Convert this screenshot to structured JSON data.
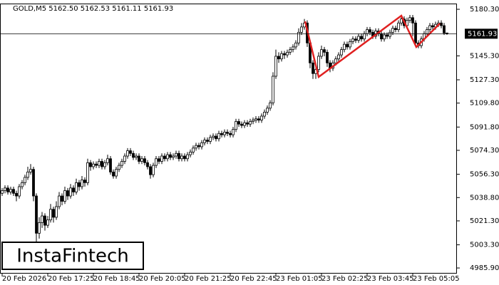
{
  "header": "GOLD,M5  5162.50 5162.53 5161.11 5161.93",
  "logo": "InstaFintech",
  "chart_data": {
    "type": "candlestick",
    "ylim": [
      4982.2,
      5184.6
    ],
    "yticks": [
      {
        "value": 5180.3,
        "label": "5180.30"
      },
      {
        "value": 5145.3,
        "label": "5145.30"
      },
      {
        "value": 5127.3,
        "label": "5127.30"
      },
      {
        "value": 5109.8,
        "label": "5109.80"
      },
      {
        "value": 5091.8,
        "label": "5091.80"
      },
      {
        "value": 5074.3,
        "label": "5074.30"
      },
      {
        "value": 5056.3,
        "label": "5056.30"
      },
      {
        "value": 5038.8,
        "label": "5038.80"
      },
      {
        "value": 5021.3,
        "label": "5021.30"
      },
      {
        "value": 5003.3,
        "label": "5003.30"
      },
      {
        "value": 4985.9,
        "label": "4985.90"
      }
    ],
    "current_price": {
      "value": 5161.93,
      "label": "5161.93"
    },
    "pattern_color": "#e02020",
    "categories": [
      "20 Feb 2026",
      null,
      null,
      null,
      null,
      null,
      null,
      null,
      null,
      null,
      null,
      null,
      null,
      null,
      null,
      null,
      "20 Feb 17:25",
      null,
      null,
      null,
      null,
      null,
      null,
      null,
      null,
      null,
      null,
      null,
      null,
      null,
      null,
      null,
      "20 Feb 18:45",
      null,
      null,
      null,
      null,
      null,
      null,
      null,
      null,
      null,
      null,
      null,
      null,
      null,
      null,
      null,
      "20 Feb 20:05",
      null,
      null,
      null,
      null,
      null,
      null,
      null,
      null,
      null,
      null,
      null,
      null,
      null,
      null,
      null,
      "20 Feb 21:25",
      null,
      null,
      null,
      null,
      null,
      null,
      null,
      null,
      null,
      null,
      null,
      null,
      null,
      null,
      null,
      "20 Feb 22:45",
      null,
      null,
      null,
      null,
      null,
      null,
      null,
      null,
      null,
      null,
      null,
      null,
      null,
      null,
      null,
      "23 Feb 01:05",
      null,
      null,
      null,
      null,
      null,
      null,
      null,
      null,
      null,
      null,
      null,
      null,
      null,
      null,
      null,
      "23 Feb 02:25",
      null,
      null,
      null,
      null,
      null,
      null,
      null,
      null,
      null,
      null,
      null,
      null,
      null,
      null,
      null,
      "23 Feb 03:45",
      null,
      null,
      null,
      null,
      null,
      null,
      null,
      null,
      null,
      null,
      null,
      null,
      null,
      null,
      null,
      "23 Feb 05:05",
      null,
      null,
      null,
      null,
      null,
      null,
      null,
      null,
      null,
      null,
      null,
      null
    ],
    "candles": [
      [
        5042,
        5046,
        5040,
        5044
      ],
      [
        5044,
        5048,
        5042,
        5046
      ],
      [
        5046,
        5048,
        5041,
        5043
      ],
      [
        5043,
        5047,
        5041,
        5045
      ],
      [
        5045,
        5047,
        5040,
        5042
      ],
      [
        5042,
        5044,
        5036,
        5040
      ],
      [
        5040,
        5049,
        5038,
        5047
      ],
      [
        5047,
        5052,
        5045,
        5050
      ],
      [
        5050,
        5056,
        5048,
        5054
      ],
      [
        5054,
        5062,
        5052,
        5058
      ],
      [
        5058,
        5064,
        5056,
        5060
      ],
      [
        5060,
        5062,
        5036,
        5040
      ],
      [
        5040,
        5042,
        5003,
        5012
      ],
      [
        5012,
        5024,
        5008,
        5020
      ],
      [
        5020,
        5028,
        5016,
        5025
      ],
      [
        5025,
        5027,
        5014,
        5018
      ],
      [
        5018,
        5025,
        5016,
        5022
      ],
      [
        5022,
        5034,
        5020,
        5030
      ],
      [
        5030,
        5032,
        5020,
        5024
      ],
      [
        5024,
        5036,
        5022,
        5032
      ],
      [
        5032,
        5043,
        5030,
        5040
      ],
      [
        5040,
        5042,
        5033,
        5036
      ],
      [
        5036,
        5047,
        5034,
        5044
      ],
      [
        5044,
        5046,
        5037,
        5040
      ],
      [
        5040,
        5049,
        5038,
        5046
      ],
      [
        5046,
        5048,
        5040,
        5043
      ],
      [
        5043,
        5053,
        5041,
        5050
      ],
      [
        5050,
        5052,
        5044,
        5047
      ],
      [
        5047,
        5055,
        5045,
        5052
      ],
      [
        5052,
        5054,
        5047,
        5050
      ],
      [
        5050,
        5068,
        5048,
        5065
      ],
      [
        5065,
        5067,
        5059,
        5062
      ],
      [
        5062,
        5066,
        5060,
        5064
      ],
      [
        5064,
        5066,
        5061,
        5063
      ],
      [
        5063,
        5068,
        5061,
        5066
      ],
      [
        5066,
        5068,
        5060,
        5062
      ],
      [
        5062,
        5067,
        5060,
        5065
      ],
      [
        5065,
        5071,
        5063,
        5068
      ],
      [
        5068,
        5070,
        5056,
        5058
      ],
      [
        5058,
        5060,
        5053,
        5055
      ],
      [
        5055,
        5062,
        5053,
        5060
      ],
      [
        5060,
        5065,
        5058,
        5063
      ],
      [
        5063,
        5068,
        5061,
        5066
      ],
      [
        5066,
        5072,
        5064,
        5070
      ],
      [
        5070,
        5076,
        5068,
        5074
      ],
      [
        5074,
        5076,
        5070,
        5072
      ],
      [
        5072,
        5074,
        5067,
        5069
      ],
      [
        5069,
        5072,
        5067,
        5070
      ],
      [
        5070,
        5072,
        5064,
        5066
      ],
      [
        5066,
        5070,
        5064,
        5068
      ],
      [
        5068,
        5070,
        5063,
        5065
      ],
      [
        5065,
        5067,
        5060,
        5062
      ],
      [
        5062,
        5064,
        5053,
        5056
      ],
      [
        5056,
        5065,
        5054,
        5063
      ],
      [
        5063,
        5070,
        5061,
        5068
      ],
      [
        5068,
        5070,
        5064,
        5066
      ],
      [
        5066,
        5072,
        5064,
        5070
      ],
      [
        5070,
        5072,
        5066,
        5068
      ],
      [
        5068,
        5073,
        5066,
        5071
      ],
      [
        5071,
        5073,
        5067,
        5069
      ],
      [
        5069,
        5072,
        5067,
        5070
      ],
      [
        5070,
        5074,
        5068,
        5072
      ],
      [
        5072,
        5074,
        5066,
        5068
      ],
      [
        5068,
        5072,
        5066,
        5070
      ],
      [
        5070,
        5072,
        5066,
        5068
      ],
      [
        5068,
        5073,
        5066,
        5071
      ],
      [
        5071,
        5075,
        5069,
        5073
      ],
      [
        5073,
        5078,
        5071,
        5076
      ],
      [
        5076,
        5080,
        5074,
        5078
      ],
      [
        5078,
        5080,
        5075,
        5077
      ],
      [
        5077,
        5082,
        5075,
        5080
      ],
      [
        5080,
        5084,
        5078,
        5082
      ],
      [
        5082,
        5084,
        5079,
        5081
      ],
      [
        5081,
        5086,
        5079,
        5084
      ],
      [
        5084,
        5087,
        5082,
        5085
      ],
      [
        5085,
        5087,
        5081,
        5083
      ],
      [
        5083,
        5089,
        5081,
        5087
      ],
      [
        5087,
        5089,
        5084,
        5086
      ],
      [
        5086,
        5090,
        5084,
        5088
      ],
      [
        5088,
        5090,
        5085,
        5087
      ],
      [
        5087,
        5089,
        5084,
        5086
      ],
      [
        5086,
        5092,
        5084,
        5090
      ],
      [
        5090,
        5098,
        5088,
        5096
      ],
      [
        5096,
        5098,
        5092,
        5094
      ],
      [
        5094,
        5096,
        5091,
        5093
      ],
      [
        5093,
        5097,
        5091,
        5095
      ],
      [
        5095,
        5097,
        5092,
        5094
      ],
      [
        5094,
        5098,
        5092,
        5096
      ],
      [
        5096,
        5099,
        5094,
        5097
      ],
      [
        5097,
        5100,
        5095,
        5098
      ],
      [
        5098,
        5100,
        5095,
        5097
      ],
      [
        5097,
        5102,
        5095,
        5100
      ],
      [
        5100,
        5105,
        5098,
        5103
      ],
      [
        5103,
        5108,
        5101,
        5106
      ],
      [
        5106,
        5112,
        5104,
        5110
      ],
      [
        5110,
        5133,
        5108,
        5130
      ],
      [
        5130,
        5150,
        5128,
        5145
      ],
      [
        5145,
        5148,
        5140,
        5143
      ],
      [
        5143,
        5149,
        5141,
        5147
      ],
      [
        5147,
        5149,
        5143,
        5146
      ],
      [
        5146,
        5150,
        5144,
        5148
      ],
      [
        5148,
        5152,
        5146,
        5150
      ],
      [
        5150,
        5154,
        5148,
        5152
      ],
      [
        5152,
        5157,
        5150,
        5155
      ],
      [
        5155,
        5166,
        5153,
        5163
      ],
      [
        5163,
        5170,
        5161,
        5167
      ],
      [
        5167,
        5173,
        5165,
        5170
      ],
      [
        5170,
        5172,
        5152,
        5155
      ],
      [
        5155,
        5157,
        5136,
        5140
      ],
      [
        5140,
        5142,
        5128,
        5132
      ],
      [
        5132,
        5138,
        5128,
        5135
      ],
      [
        5135,
        5148,
        5133,
        5145
      ],
      [
        5145,
        5153,
        5143,
        5150
      ],
      [
        5150,
        5152,
        5145,
        5148
      ],
      [
        5148,
        5150,
        5137,
        5140
      ],
      [
        5140,
        5142,
        5133,
        5136
      ],
      [
        5136,
        5142,
        5134,
        5140
      ],
      [
        5140,
        5145,
        5138,
        5143
      ],
      [
        5143,
        5148,
        5141,
        5146
      ],
      [
        5146,
        5152,
        5144,
        5150
      ],
      [
        5150,
        5156,
        5148,
        5154
      ],
      [
        5154,
        5156,
        5150,
        5152
      ],
      [
        5152,
        5158,
        5150,
        5156
      ],
      [
        5156,
        5160,
        5154,
        5158
      ],
      [
        5158,
        5160,
        5155,
        5157
      ],
      [
        5157,
        5162,
        5155,
        5160
      ],
      [
        5160,
        5162,
        5156,
        5158
      ],
      [
        5158,
        5164,
        5156,
        5162
      ],
      [
        5162,
        5167,
        5160,
        5165
      ],
      [
        5165,
        5167,
        5161,
        5163
      ],
      [
        5163,
        5165,
        5158,
        5160
      ],
      [
        5160,
        5166,
        5158,
        5164
      ],
      [
        5164,
        5166,
        5160,
        5162
      ],
      [
        5162,
        5164,
        5156,
        5158
      ],
      [
        5158,
        5163,
        5156,
        5161
      ],
      [
        5161,
        5163,
        5158,
        5160
      ],
      [
        5160,
        5165,
        5158,
        5163
      ],
      [
        5163,
        5168,
        5161,
        5166
      ],
      [
        5166,
        5168,
        5163,
        5165
      ],
      [
        5165,
        5172,
        5163,
        5170
      ],
      [
        5170,
        5175,
        5168,
        5173
      ],
      [
        5173,
        5175,
        5166,
        5168
      ],
      [
        5168,
        5174,
        5166,
        5172
      ],
      [
        5172,
        5176,
        5170,
        5174
      ],
      [
        5174,
        5176,
        5160,
        5170
      ],
      [
        5170,
        5172,
        5152,
        5155
      ],
      [
        5155,
        5157,
        5151,
        5153
      ],
      [
        5153,
        5160,
        5151,
        5158
      ],
      [
        5158,
        5164,
        5156,
        5162
      ],
      [
        5162,
        5167,
        5160,
        5165
      ],
      [
        5165,
        5170,
        5163,
        5168
      ],
      [
        5168,
        5170,
        5165,
        5167
      ],
      [
        5167,
        5171,
        5165,
        5169
      ],
      [
        5169,
        5172,
        5167,
        5170
      ],
      [
        5170,
        5172,
        5166,
        5168
      ],
      [
        5168,
        5170,
        5161,
        5162.5
      ],
      [
        5162.5,
        5162.53,
        5161.11,
        5161.93
      ]
    ]
  }
}
